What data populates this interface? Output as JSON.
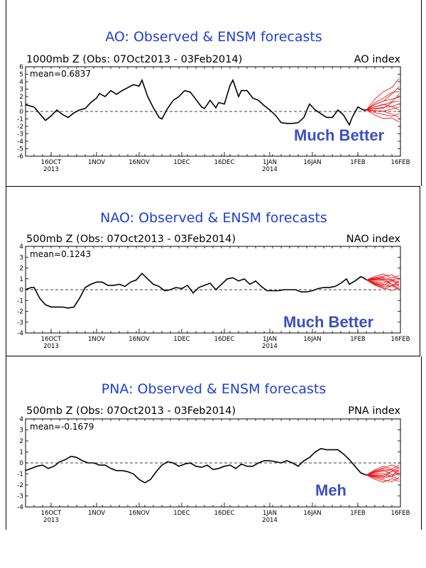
{
  "chart_data": [
    {
      "id": "ao",
      "type": "line",
      "title": "AO: Observed & ENSM forecasts",
      "subtitle_left": "1000mb Z (Obs: 07Oct2013 - 03Feb2014)",
      "subtitle_right": "AO index",
      "mean_label": "mean=0.6837",
      "annotation": "Much Better",
      "ylim": [
        -6,
        6
      ],
      "yticks": [
        -6,
        -5,
        -4,
        -3,
        -2,
        -1,
        0,
        1,
        2,
        3,
        4,
        5,
        6
      ],
      "xlim": [
        0,
        132
      ],
      "xticks": [
        {
          "x": 9,
          "label": "16OCT",
          "sub": "2013"
        },
        {
          "x": 25,
          "label": "1NOV",
          "sub": ""
        },
        {
          "x": 40,
          "label": "16NOV",
          "sub": ""
        },
        {
          "x": 55,
          "label": "1DEC",
          "sub": ""
        },
        {
          "x": 70,
          "label": "16DEC",
          "sub": ""
        },
        {
          "x": 86,
          "label": "1JAN",
          "sub": "2014"
        },
        {
          "x": 101,
          "label": "16JAN",
          "sub": ""
        },
        {
          "x": 117,
          "label": "1FEB",
          "sub": ""
        },
        {
          "x": 132,
          "label": "16FEB",
          "sub": ""
        }
      ],
      "observed": [
        [
          0,
          0.9
        ],
        [
          3,
          0.6
        ],
        [
          5,
          -0.3
        ],
        [
          7,
          -1.2
        ],
        [
          9,
          -0.6
        ],
        [
          11,
          0.2
        ],
        [
          13,
          -0.4
        ],
        [
          15,
          -0.8
        ],
        [
          17,
          -0.2
        ],
        [
          19,
          0.2
        ],
        [
          21,
          0.4
        ],
        [
          23,
          1.2
        ],
        [
          25,
          1.8
        ],
        [
          26,
          2.4
        ],
        [
          28,
          2.0
        ],
        [
          30,
          2.8
        ],
        [
          32,
          2.3
        ],
        [
          34,
          2.8
        ],
        [
          36,
          3.2
        ],
        [
          38,
          3.6
        ],
        [
          40,
          3.4
        ],
        [
          41,
          4.2
        ],
        [
          43,
          2.0
        ],
        [
          45,
          0.5
        ],
        [
          47,
          -0.8
        ],
        [
          48,
          -1.0
        ],
        [
          50,
          0.4
        ],
        [
          52,
          1.5
        ],
        [
          54,
          2.0
        ],
        [
          56,
          2.8
        ],
        [
          58,
          2.6
        ],
        [
          60,
          1.6
        ],
        [
          62,
          0.6
        ],
        [
          63,
          0.4
        ],
        [
          65,
          1.5
        ],
        [
          67,
          0.5
        ],
        [
          68,
          1.2
        ],
        [
          70,
          1.0
        ],
        [
          72,
          3.5
        ],
        [
          73,
          4.2
        ],
        [
          75,
          2.0
        ],
        [
          76,
          2.8
        ],
        [
          78,
          2.8
        ],
        [
          80,
          1.8
        ],
        [
          82,
          1.5
        ],
        [
          84,
          0.8
        ],
        [
          86,
          0.2
        ],
        [
          88,
          -0.5
        ],
        [
          90,
          -1.5
        ],
        [
          92,
          -1.6
        ],
        [
          94,
          -1.6
        ],
        [
          96,
          -1.5
        ],
        [
          98,
          -0.8
        ],
        [
          100,
          1.0
        ],
        [
          102,
          0.2
        ],
        [
          104,
          -0.3
        ],
        [
          106,
          -0.8
        ],
        [
          108,
          -0.8
        ],
        [
          110,
          0.2
        ],
        [
          112,
          -0.5
        ],
        [
          114,
          -1.8
        ],
        [
          115,
          -0.8
        ],
        [
          117,
          0.6
        ],
        [
          119,
          0.2
        ],
        [
          120,
          0.2
        ]
      ],
      "forecast_start": [
        120,
        0.2
      ],
      "forecast_ends": [
        4.4,
        3.3,
        2.7,
        2.3,
        1.9,
        1.4,
        1.0,
        0.6,
        0.2,
        -0.3,
        -0.8,
        -1.4
      ]
    },
    {
      "id": "nao",
      "type": "line",
      "title": "NAO: Observed & ENSM forecasts",
      "subtitle_left": "500mb Z (Obs: 07Oct2013 - 03Feb2014)",
      "subtitle_right": "NAO index",
      "mean_label": "mean=0.1243",
      "annotation": "Much Better",
      "ylim": [
        -4,
        4
      ],
      "yticks": [
        -4,
        -3,
        -2,
        -1,
        0,
        1,
        2,
        3,
        4
      ],
      "xlim": [
        0,
        132
      ],
      "xticks": [
        {
          "x": 9,
          "label": "16OCT",
          "sub": "2013"
        },
        {
          "x": 25,
          "label": "1NOV",
          "sub": ""
        },
        {
          "x": 40,
          "label": "16NOV",
          "sub": ""
        },
        {
          "x": 55,
          "label": "1DEC",
          "sub": ""
        },
        {
          "x": 70,
          "label": "16DEC",
          "sub": ""
        },
        {
          "x": 86,
          "label": "1JAN",
          "sub": "2014"
        },
        {
          "x": 101,
          "label": "16JAN",
          "sub": ""
        },
        {
          "x": 117,
          "label": "1FEB",
          "sub": ""
        },
        {
          "x": 132,
          "label": "16FEB",
          "sub": ""
        }
      ],
      "observed": [
        [
          0,
          0.0
        ],
        [
          2,
          0.2
        ],
        [
          3,
          0.2
        ],
        [
          5,
          -0.8
        ],
        [
          7,
          -1.4
        ],
        [
          9,
          -1.6
        ],
        [
          11,
          -1.6
        ],
        [
          13,
          -1.6
        ],
        [
          15,
          -1.7
        ],
        [
          17,
          -1.6
        ],
        [
          19,
          -0.8
        ],
        [
          21,
          0.2
        ],
        [
          23,
          0.5
        ],
        [
          25,
          0.7
        ],
        [
          27,
          0.7
        ],
        [
          29,
          0.4
        ],
        [
          31,
          0.4
        ],
        [
          33,
          0.5
        ],
        [
          35,
          0.3
        ],
        [
          37,
          0.7
        ],
        [
          39,
          0.9
        ],
        [
          41,
          1.5
        ],
        [
          43,
          1.0
        ],
        [
          45,
          0.5
        ],
        [
          47,
          0.3
        ],
        [
          49,
          -0.1
        ],
        [
          51,
          0.0
        ],
        [
          53,
          0.2
        ],
        [
          55,
          0.1
        ],
        [
          57,
          0.4
        ],
        [
          59,
          -0.3
        ],
        [
          61,
          0.2
        ],
        [
          63,
          0.4
        ],
        [
          65,
          0.6
        ],
        [
          67,
          0.0
        ],
        [
          69,
          0.5
        ],
        [
          71,
          1.0
        ],
        [
          73,
          1.1
        ],
        [
          75,
          0.8
        ],
        [
          77,
          1.0
        ],
        [
          79,
          0.5
        ],
        [
          81,
          0.8
        ],
        [
          83,
          0.3
        ],
        [
          85,
          -0.1
        ],
        [
          87,
          -0.1
        ],
        [
          89,
          -0.1
        ],
        [
          91,
          0.0
        ],
        [
          93,
          0.0
        ],
        [
          95,
          0.0
        ],
        [
          97,
          -0.2
        ],
        [
          99,
          -0.2
        ],
        [
          101,
          -0.1
        ],
        [
          103,
          0.1
        ],
        [
          105,
          0.2
        ],
        [
          107,
          0.2
        ],
        [
          109,
          0.3
        ],
        [
          111,
          0.6
        ],
        [
          113,
          1.0
        ],
        [
          114,
          0.5
        ],
        [
          116,
          0.8
        ],
        [
          118,
          1.2
        ],
        [
          119,
          1.1
        ],
        [
          120,
          0.9
        ]
      ],
      "forecast_start": [
        120,
        0.9
      ],
      "forecast_ends": [
        1.3,
        1.1,
        0.9,
        0.8,
        0.7,
        0.6,
        0.5,
        0.4,
        0.3,
        0.2,
        0.1,
        0.0
      ]
    },
    {
      "id": "pna",
      "type": "line",
      "title": "PNA: Observed & ENSM forecasts",
      "subtitle_left": "500mb Z (Obs: 07Oct2013 - 03Feb2014)",
      "subtitle_right": "PNA index",
      "mean_label": "mean=-0.1679",
      "annotation": "Meh",
      "ylim": [
        -4,
        4
      ],
      "yticks": [
        -4,
        -3,
        -2,
        -1,
        0,
        1,
        2,
        3,
        4
      ],
      "xlim": [
        0,
        132
      ],
      "xticks": [
        {
          "x": 9,
          "label": "16OCT",
          "sub": "2013"
        },
        {
          "x": 25,
          "label": "1NOV",
          "sub": ""
        },
        {
          "x": 40,
          "label": "16NOV",
          "sub": ""
        },
        {
          "x": 55,
          "label": "1DEC",
          "sub": ""
        },
        {
          "x": 70,
          "label": "16DEC",
          "sub": ""
        },
        {
          "x": 86,
          "label": "1JAN",
          "sub": "2014"
        },
        {
          "x": 101,
          "label": "16JAN",
          "sub": ""
        },
        {
          "x": 117,
          "label": "1FEB",
          "sub": ""
        },
        {
          "x": 132,
          "label": "16FEB",
          "sub": ""
        }
      ],
      "observed": [
        [
          0,
          -0.7
        ],
        [
          2,
          -0.5
        ],
        [
          4,
          -0.3
        ],
        [
          6,
          -0.2
        ],
        [
          8,
          -0.5
        ],
        [
          10,
          -0.3
        ],
        [
          12,
          0.1
        ],
        [
          14,
          0.3
        ],
        [
          16,
          0.6
        ],
        [
          18,
          0.5
        ],
        [
          20,
          0.2
        ],
        [
          22,
          0.0
        ],
        [
          24,
          0.0
        ],
        [
          26,
          -0.2
        ],
        [
          28,
          -0.2
        ],
        [
          30,
          -0.5
        ],
        [
          32,
          -0.7
        ],
        [
          34,
          -0.7
        ],
        [
          36,
          -0.8
        ],
        [
          38,
          -1.0
        ],
        [
          40,
          -1.5
        ],
        [
          42,
          -1.8
        ],
        [
          44,
          -1.5
        ],
        [
          46,
          -0.8
        ],
        [
          48,
          -0.2
        ],
        [
          50,
          0.1
        ],
        [
          52,
          0.0
        ],
        [
          54,
          -0.3
        ],
        [
          56,
          -0.1
        ],
        [
          58,
          0.0
        ],
        [
          60,
          -0.3
        ],
        [
          62,
          -0.4
        ],
        [
          64,
          -0.2
        ],
        [
          66,
          -0.6
        ],
        [
          68,
          -0.5
        ],
        [
          70,
          -0.3
        ],
        [
          72,
          -0.2
        ],
        [
          74,
          -0.5
        ],
        [
          76,
          -0.1
        ],
        [
          78,
          -0.3
        ],
        [
          80,
          -0.3
        ],
        [
          82,
          0.0
        ],
        [
          84,
          0.2
        ],
        [
          86,
          0.2
        ],
        [
          88,
          0.1
        ],
        [
          90,
          0.0
        ],
        [
          92,
          0.2
        ],
        [
          94,
          0.0
        ],
        [
          96,
          -0.3
        ],
        [
          98,
          0.2
        ],
        [
          100,
          0.5
        ],
        [
          102,
          1.0
        ],
        [
          104,
          1.3
        ],
        [
          106,
          1.2
        ],
        [
          108,
          1.2
        ],
        [
          110,
          1.2
        ],
        [
          112,
          0.8
        ],
        [
          114,
          0.3
        ],
        [
          116,
          -0.3
        ],
        [
          118,
          -0.9
        ],
        [
          119,
          -1.0
        ],
        [
          120,
          -1.1
        ]
      ],
      "forecast_start": [
        120,
        -1.1
      ],
      "forecast_ends": [
        -0.2,
        -0.4,
        -0.5,
        -0.6,
        -0.7,
        -0.8,
        -0.9,
        -1.0,
        -1.1,
        -1.3,
        -1.5,
        -1.7
      ]
    }
  ]
}
